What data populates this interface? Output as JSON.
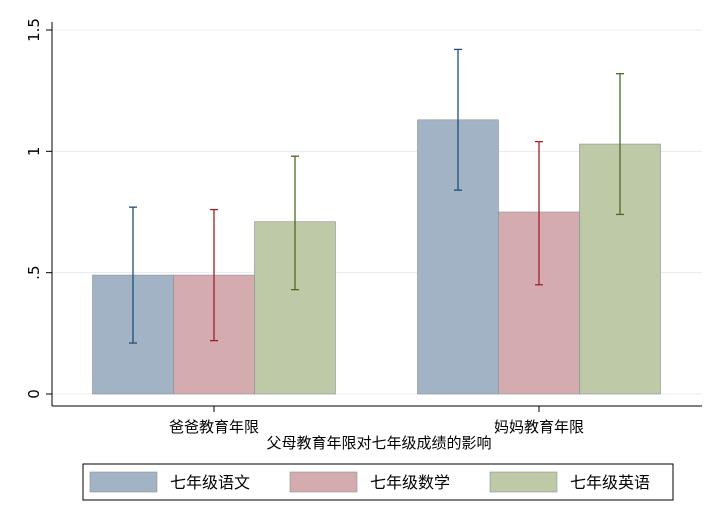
{
  "chart_data": {
    "type": "bar",
    "title": "",
    "xlabel": "父母教育年限对七年级成绩的影响",
    "ylabel": "",
    "categories": [
      "爸爸教育年限",
      "妈妈教育年限"
    ],
    "ylim": [
      0,
      1.5
    ],
    "yticks": [
      {
        "value": 0,
        "label": "0"
      },
      {
        "value": 0.5,
        "label": ".5"
      },
      {
        "value": 1,
        "label": "1"
      },
      {
        "value": 1.5,
        "label": "1.5"
      }
    ],
    "grid": true,
    "legend_position": "bottom",
    "error_bars": true,
    "series": [
      {
        "name": "七年级语文",
        "color": "#a2b3c5",
        "err_color": "#1f4e79",
        "values": [
          0.49,
          1.13
        ],
        "err_low": [
          0.21,
          0.84
        ],
        "err_high": [
          0.77,
          1.42
        ]
      },
      {
        "name": "七年级数学",
        "color": "#d4acb0",
        "err_color": "#a31f2b",
        "values": [
          0.49,
          0.75
        ],
        "err_low": [
          0.22,
          0.45
        ],
        "err_high": [
          0.76,
          1.04
        ]
      },
      {
        "name": "七年级英语",
        "color": "#bec9a8",
        "err_color": "#4d6b1e",
        "values": [
          0.71,
          1.03
        ],
        "err_low": [
          0.43,
          0.74
        ],
        "err_high": [
          0.98,
          1.32
        ]
      }
    ]
  }
}
